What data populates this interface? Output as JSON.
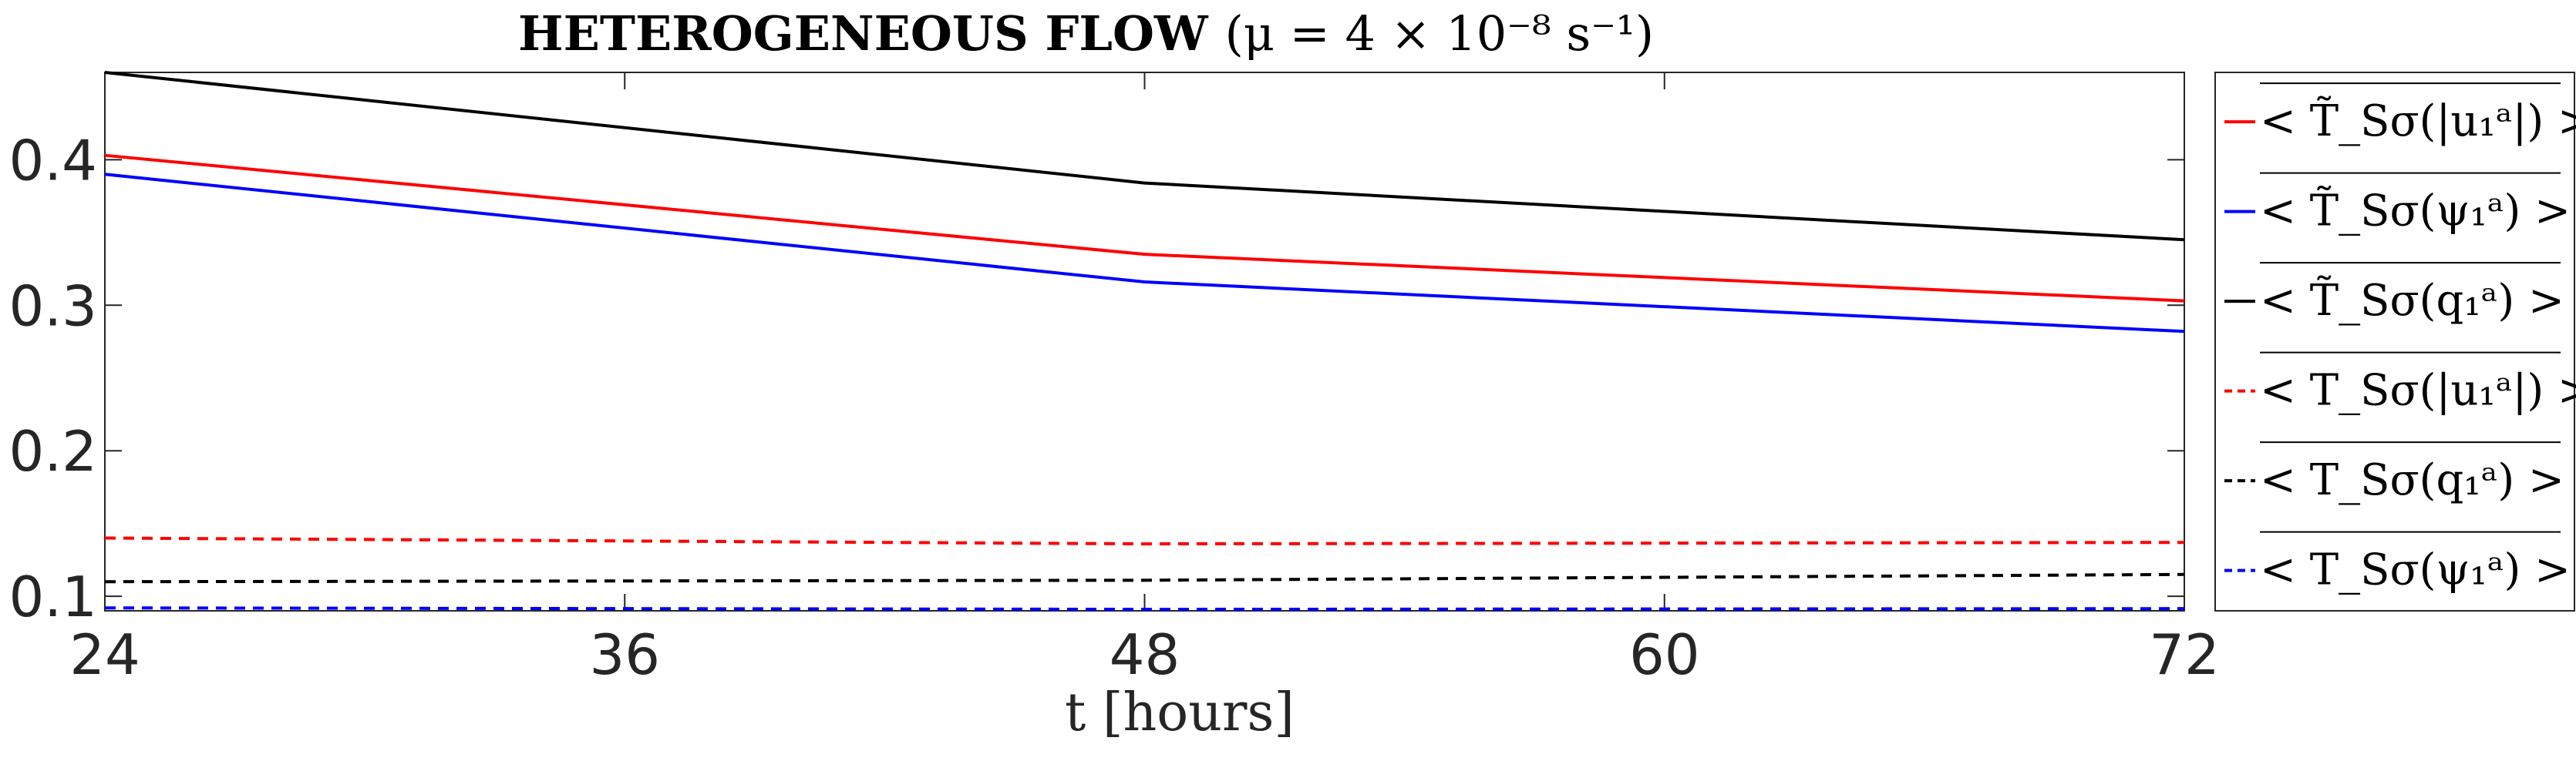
{
  "chart_data": {
    "type": "line",
    "title": "HETEROGENEOUS FLOW",
    "title_param": "(μ = 4 × 10⁻⁸ s⁻¹)",
    "xlabel": "t [hours]",
    "ylabel": "",
    "xlim": [
      24,
      72
    ],
    "ylim": [
      0.09,
      0.46
    ],
    "xticks": [
      24,
      36,
      48,
      60,
      72
    ],
    "xtick_labels": [
      "24",
      "36",
      "48",
      "60",
      "72"
    ],
    "yticks": [
      0.1,
      0.2,
      0.3,
      0.4
    ],
    "ytick_labels": [
      "0.1",
      "0.2",
      "0.3",
      "0.4"
    ],
    "grid": false,
    "legend_position": "outside-right",
    "x": [
      24,
      48,
      72
    ],
    "series": [
      {
        "name": "< T̃_Sσ(|u₁ᵃ|) >",
        "color": "#ff0000",
        "dash": "solid",
        "values": [
          0.403,
          0.335,
          0.303
        ]
      },
      {
        "name": "< T̃_Sσ(ψ₁ᵃ) >",
        "color": "#0000ff",
        "dash": "solid",
        "values": [
          0.39,
          0.316,
          0.282
        ]
      },
      {
        "name": "< T̃_Sσ(q₁ᵃ) >",
        "color": "#000000",
        "dash": "solid",
        "values": [
          0.46,
          0.384,
          0.345
        ]
      },
      {
        "name": "< T_Sσ(|u₁ᵃ|) >",
        "color": "#ff0000",
        "dash": "dashed",
        "values": [
          0.14,
          0.136,
          0.137
        ]
      },
      {
        "name": "< T_Sσ(q₁ᵃ) >",
        "color": "#000000",
        "dash": "dashed",
        "values": [
          0.11,
          0.111,
          0.115
        ]
      },
      {
        "name": "< T_Sσ(ψ₁ᵃ) >",
        "color": "#0000ff",
        "dash": "dashed",
        "values": [
          0.092,
          0.091,
          0.0915
        ]
      }
    ]
  }
}
